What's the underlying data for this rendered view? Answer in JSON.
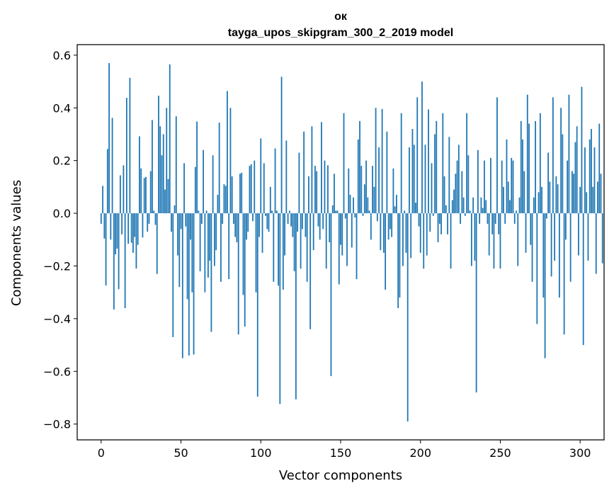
{
  "chart_data": {
    "type": "bar",
    "title": "ок",
    "subtitle": "tayga_upos_skipgram_300_2_2019 model",
    "xlabel": "Vector components",
    "ylabel": "Components values",
    "xlim": [
      -15,
      315
    ],
    "ylim": [
      -0.86,
      0.64
    ],
    "xticks": [
      0,
      50,
      100,
      150,
      200,
      250,
      300
    ],
    "yticks": [
      -0.8,
      -0.6,
      -0.4,
      -0.2,
      0.0,
      0.2,
      0.4,
      0.6
    ],
    "ytick_labels": [
      "−0.8",
      "−0.6",
      "−0.4",
      "−0.2",
      "0.0",
      "0.2",
      "0.4",
      "0.6"
    ],
    "grid": false,
    "bar_color": "#1f77b4",
    "values": [
      -0.04,
      0.104,
      -0.096,
      -0.274,
      0.244,
      0.57,
      -0.1,
      0.362,
      -0.365,
      -0.156,
      -0.134,
      -0.288,
      0.144,
      -0.08,
      0.182,
      -0.36,
      0.438,
      -0.116,
      0.514,
      -0.112,
      -0.15,
      -0.09,
      -0.21,
      -0.12,
      0.292,
      0.17,
      -0.092,
      0.134,
      0.138,
      -0.07,
      -0.04,
      0.16,
      0.354,
      0.01,
      -0.044,
      -0.23,
      0.446,
      0.33,
      0.22,
      0.3,
      0.09,
      0.4,
      0.13,
      0.565,
      -0.07,
      -0.47,
      0.03,
      0.368,
      -0.16,
      -0.28,
      -0.06,
      -0.55,
      0.19,
      -0.05,
      -0.326,
      -0.54,
      -0.1,
      -0.3,
      -0.536,
      0.176,
      0.348,
      0.01,
      -0.22,
      -0.04,
      0.24,
      -0.3,
      0.01,
      -0.244,
      -0.18,
      -0.45,
      0.22,
      -0.2,
      -0.14,
      0.07,
      0.344,
      -0.26,
      -0.04,
      0.11,
      0.104,
      0.464,
      -0.25,
      0.4,
      0.14,
      -0.04,
      -0.09,
      -0.11,
      -0.46,
      0.15,
      0.154,
      -0.31,
      -0.43,
      -0.1,
      -0.07,
      0.18,
      0.186,
      -0.03,
      0.2,
      -0.3,
      -0.696,
      -0.09,
      0.284,
      -0.15,
      0.19,
      -0.01,
      -0.06,
      -0.07,
      0.1,
      0.01,
      -0.26,
      0.246,
      0.01,
      -0.275,
      -0.724,
      0.518,
      -0.29,
      -0.16,
      0.276,
      -0.04,
      0.01,
      -0.05,
      -0.09,
      -0.22,
      -0.706,
      -0.07,
      0.23,
      -0.21,
      -0.06,
      0.31,
      -0.09,
      -0.26,
      0.14,
      -0.44,
      0.33,
      -0.14,
      0.18,
      0.16,
      -0.05,
      -0.1,
      0.346,
      -0.06,
      0.2,
      -0.21,
      0.182,
      -0.11,
      -0.618,
      0.03,
      0.15,
      0.01,
      0.01,
      -0.27,
      -0.12,
      -0.16,
      0.38,
      -0.02,
      -0.2,
      0.17,
      0.07,
      -0.13,
      0.06,
      -0.016,
      -0.25,
      0.28,
      0.35,
      0.18,
      -0.01,
      0.11,
      0.2,
      0.06,
      0.01,
      -0.1,
      0.18,
      0.1,
      0.4,
      -0.03,
      0.25,
      -0.14,
      0.396,
      -0.15,
      -0.29,
      0.31,
      -0.1,
      -0.06,
      -0.09,
      0.17,
      0.026,
      0.07,
      -0.36,
      -0.32,
      0.38,
      -0.2,
      0.01,
      -0.15,
      -0.79,
      0.25,
      -0.17,
      0.32,
      0.26,
      0.04,
      0.44,
      -0.05,
      -0.15,
      0.5,
      -0.21,
      0.26,
      -0.16,
      0.394,
      -0.07,
      0.19,
      -0.01,
      0.3,
      0.35,
      -0.11,
      -0.04,
      -0.08,
      0.38,
      0.14,
      0.03,
      -0.08,
      0.29,
      -0.21,
      0.05,
      0.09,
      0.15,
      0.2,
      0.26,
      -0.04,
      0.16,
      0.06,
      -0.01,
      0.38,
      0.22,
      0.01,
      -0.2,
      0.06,
      -0.18,
      -0.68,
      0.24,
      -0.04,
      0.06,
      0.02,
      0.2,
      0.05,
      -0.04,
      -0.16,
      0.21,
      -0.08,
      -0.21,
      -0.04,
      0.44,
      -0.08,
      -0.21,
      0.2,
      0.1,
      -0.04,
      0.28,
      0.12,
      0.05,
      0.21,
      0.2,
      -0.04,
      0.01,
      -0.2,
      0.06,
      0.35,
      0.28,
      0.16,
      -0.15,
      0.45,
      0.34,
      -0.12,
      -0.26,
      0.06,
      0.35,
      -0.42,
      0.08,
      0.38,
      0.1,
      -0.32,
      -0.55,
      -0.02,
      0.23,
      0.12,
      -0.24,
      0.44,
      -0.18,
      0.14,
      0.11,
      -0.32,
      0.4,
      0.3,
      -0.46,
      -0.1,
      0.2,
      0.45,
      -0.26,
      0.16,
      0.15,
      0.27,
      0.33,
      -0.16,
      0.1,
      0.48,
      -0.5,
      0.25,
      0.08,
      -0.18,
      0.28,
      0.32,
      0.1,
      0.25,
      -0.23,
      0.12,
      0.34,
      0.15,
      -0.19
    ]
  }
}
